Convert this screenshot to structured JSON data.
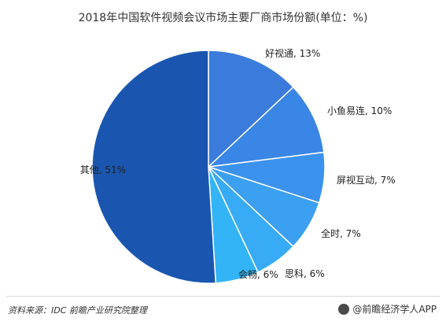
{
  "title": "2018年中国软件视频会议市场主要厂商市场份额(单位：%)",
  "footer": {
    "source": "资料来源：IDC 前瞻产业研究院整理",
    "brand": "@前瞻经济学人APP",
    "brand_icon": "qianzhan-logo-icon"
  },
  "chart_data": {
    "type": "pie",
    "title": "2018年中国软件视频会议市场主要厂商市场份额(单位：%)",
    "start_angle_deg": 0,
    "direction": "clockwise",
    "slices": [
      {
        "label": "好视通",
        "value": 13,
        "display": "好视通, 13%",
        "color": "#3a7bdc"
      },
      {
        "label": "小鱼易连",
        "value": 10,
        "display": "小鱼易连, 10%",
        "color": "#3a86e6"
      },
      {
        "label": "屏视互动",
        "value": 7,
        "display": "屏视互动, 7%",
        "color": "#3b92ee"
      },
      {
        "label": "全时",
        "value": 7,
        "display": "全时, 7%",
        "color": "#3b9ff2"
      },
      {
        "label": "思科",
        "value": 6,
        "display": "思科, 6%",
        "color": "#37abf5"
      },
      {
        "label": "会畅",
        "value": 6,
        "display": "会畅, 6%",
        "color": "#33b4f6"
      },
      {
        "label": "其他",
        "value": 51,
        "display": "其他, 51%",
        "color": "#1a56b0"
      }
    ]
  }
}
